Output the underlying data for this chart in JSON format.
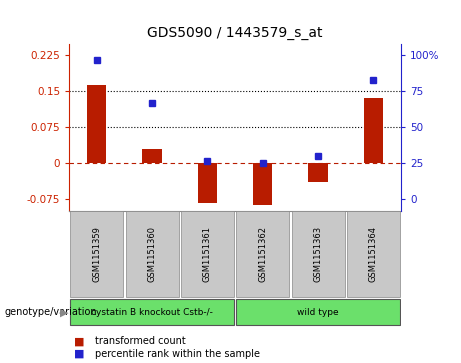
{
  "title": "GDS5090 / 1443579_s_at",
  "samples": [
    "GSM1151359",
    "GSM1151360",
    "GSM1151361",
    "GSM1151362",
    "GSM1151363",
    "GSM1151364"
  ],
  "bar_values": [
    0.163,
    0.028,
    -0.085,
    -0.088,
    -0.04,
    0.135
  ],
  "dot_values": [
    97,
    67,
    26,
    25,
    30,
    83
  ],
  "ylim_left": [
    -0.1,
    0.25
  ],
  "yticks_left": [
    -0.075,
    0,
    0.075,
    0.15,
    0.225
  ],
  "yticks_right": [
    0,
    25,
    50,
    75,
    100
  ],
  "hlines": [
    0.075,
    0.15
  ],
  "zero_line": 0.0,
  "bar_color": "#b81c00",
  "dot_color": "#2222cc",
  "bar_width": 0.35,
  "group1_label": "cystatin B knockout Cstb-/-",
  "group2_label": "wild type",
  "group_color": "#6be06b",
  "group_label_text": "genotype/variation",
  "legend_bar": "transformed count",
  "legend_dot": "percentile rank within the sample",
  "right_axis_color": "#2222cc",
  "tick_label_color_left": "#cc2200",
  "background_color": "#ffffff",
  "sample_cell_color": "#c8c8c8",
  "right_tick_labels": [
    "0",
    "25",
    "50",
    "75",
    "100%"
  ]
}
